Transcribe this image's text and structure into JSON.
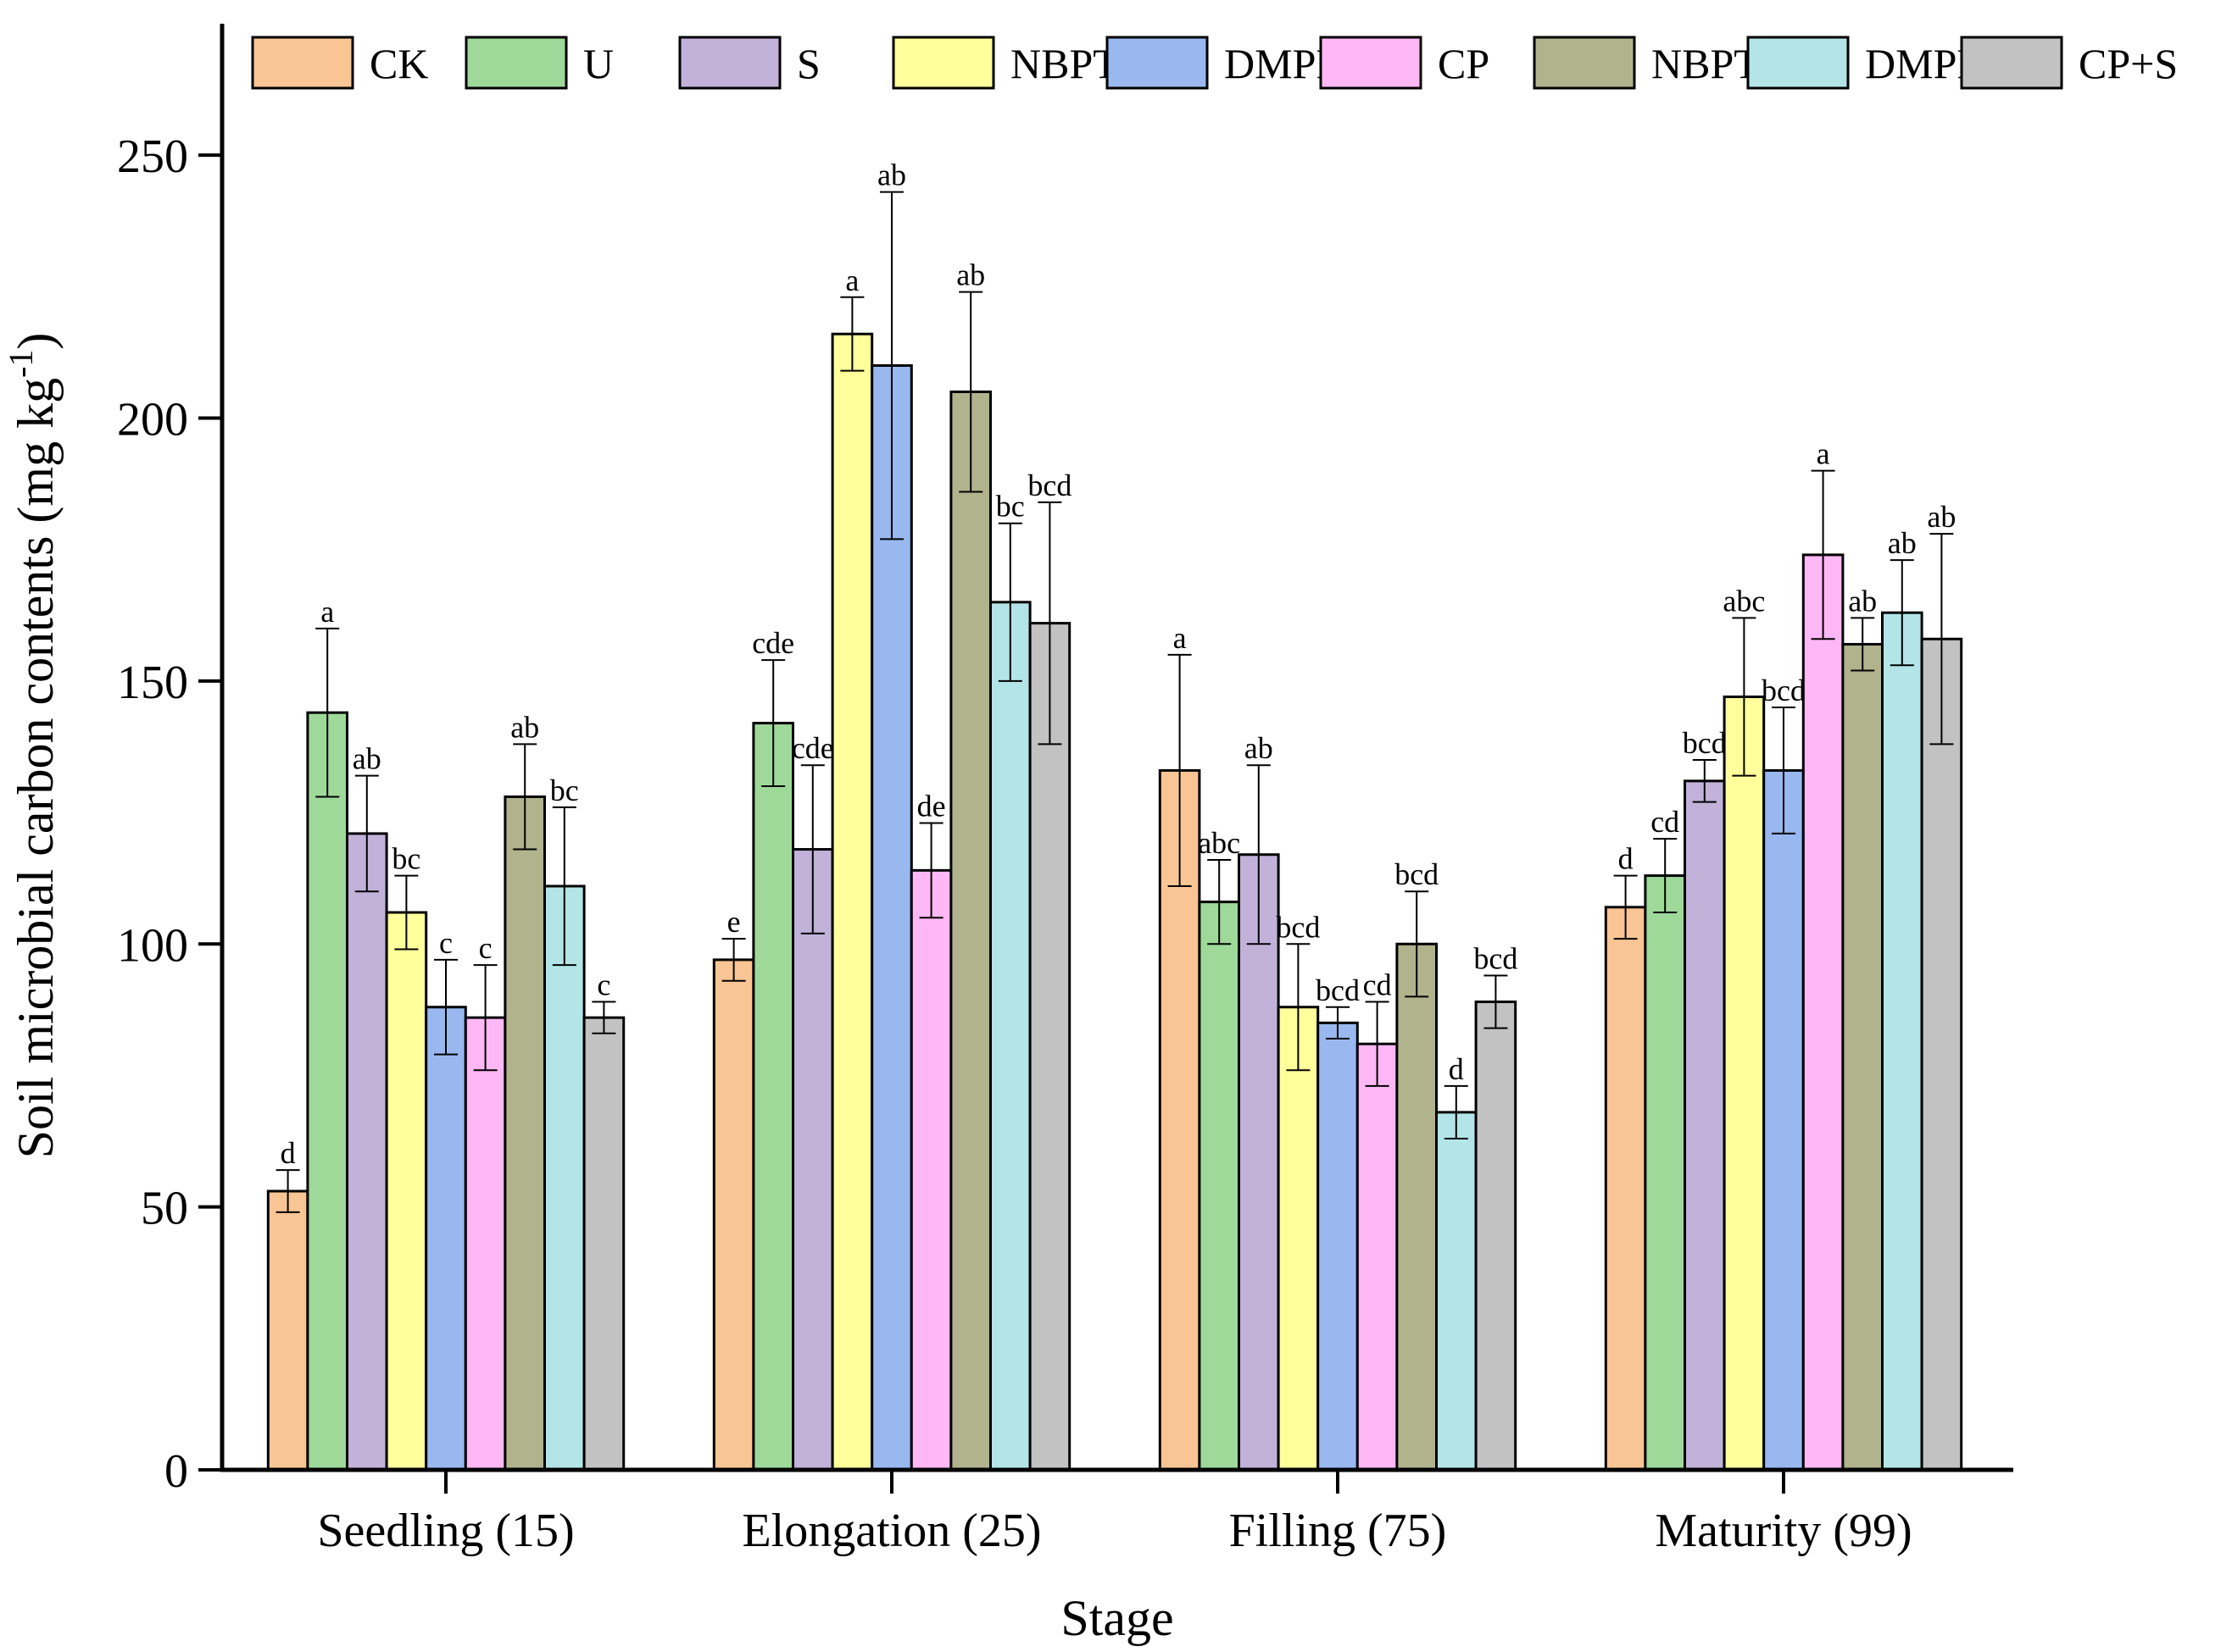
{
  "chart_data": {
    "type": "bar",
    "title": "",
    "xlabel": "Stage",
    "ylabel_main": "Soil microbial carbon contents (mg kg",
    "ylabel_sup": "-1",
    "ylabel_close": ")",
    "ylim": [
      0,
      275
    ],
    "yticks": [
      0,
      50,
      100,
      150,
      200,
      250
    ],
    "ytick_labels": [
      "0",
      "50",
      "100",
      "150",
      "200",
      "250"
    ],
    "categories": [
      "Seedling (15)",
      "Elongation (25)",
      "Filling (75)",
      "Maturity (99)"
    ],
    "legend_position": "top",
    "series": [
      {
        "name": "CK",
        "color": "#FAC594",
        "values": [
          53,
          97,
          133,
          107
        ],
        "errors": [
          4,
          4,
          22,
          6
        ],
        "labels": [
          "d",
          "e",
          "a",
          "d"
        ]
      },
      {
        "name": "U",
        "color": "#9ED99A",
        "values": [
          144,
          142,
          108,
          113
        ],
        "errors": [
          16,
          12,
          8,
          7
        ],
        "labels": [
          "a",
          "cde",
          "abc",
          "cd"
        ]
      },
      {
        "name": "S",
        "color": "#C2B2D9",
        "values": [
          121,
          118,
          117,
          131
        ],
        "errors": [
          11,
          16,
          17,
          4
        ],
        "labels": [
          "ab",
          "cde",
          "ab",
          "bcd"
        ]
      },
      {
        "name": "NBPT",
        "color": "#FFFF9C",
        "values": [
          106,
          216,
          88,
          147
        ],
        "errors": [
          7,
          7,
          12,
          15
        ],
        "labels": [
          "bc",
          "a",
          "bcd",
          "abc"
        ]
      },
      {
        "name": "DMPP",
        "color": "#99B8F0",
        "values": [
          88,
          210,
          85,
          133
        ],
        "errors": [
          9,
          33,
          3,
          12
        ],
        "labels": [
          "c",
          "ab",
          "bcd",
          "bcd"
        ]
      },
      {
        "name": "CP",
        "color": "#FFB8F5",
        "values": [
          86,
          114,
          81,
          174
        ],
        "errors": [
          10,
          9,
          8,
          16
        ],
        "labels": [
          "c",
          "de",
          "cd",
          "a"
        ]
      },
      {
        "name": "NBPT+S",
        "color": "#B0B38C",
        "values": [
          128,
          205,
          100,
          157
        ],
        "errors": [
          10,
          19,
          10,
          5
        ],
        "labels": [
          "ab",
          "ab",
          "bcd",
          "ab"
        ]
      },
      {
        "name": "DMPP+S",
        "color": "#B3E5E8",
        "values": [
          111,
          165,
          68,
          163
        ],
        "errors": [
          15,
          15,
          5,
          10
        ],
        "labels": [
          "bc",
          "bc",
          "d",
          "ab"
        ]
      },
      {
        "name": "CP+S",
        "color": "#C2C2C2",
        "values": [
          86,
          161,
          89,
          158
        ],
        "errors": [
          3,
          23,
          5,
          20
        ],
        "labels": [
          "c",
          "bcd",
          "bcd",
          "ab"
        ]
      }
    ]
  }
}
